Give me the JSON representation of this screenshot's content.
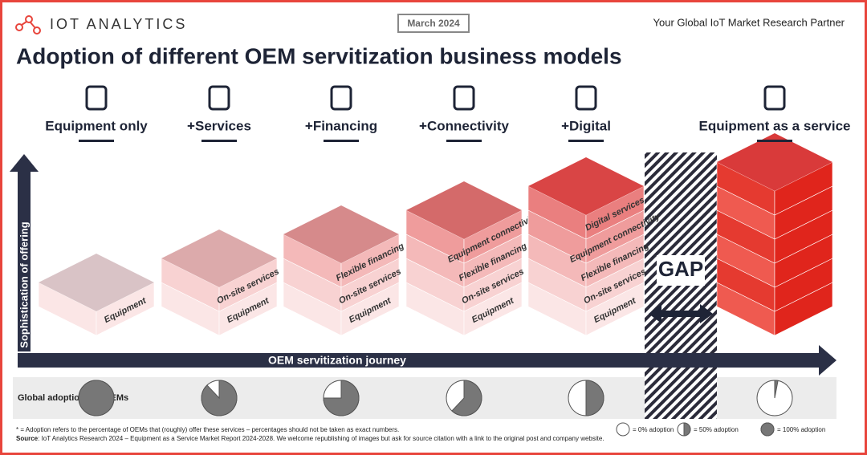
{
  "header": {
    "brand": "IOT ANALYTICS",
    "date": "March 2024",
    "tagline": "Your Global IoT Market Research Partner",
    "title": "Adoption of different OEM servitization business models"
  },
  "models": [
    {
      "label": "Equipment only",
      "layers": [
        "Equipment"
      ],
      "adoption": 100
    },
    {
      "label": "+Services",
      "layers": [
        "Equipment",
        "On-site services"
      ],
      "adoption": 88
    },
    {
      "label": "+Financing",
      "layers": [
        "Equipment",
        "On-site services",
        "Flexible financing"
      ],
      "adoption": 75
    },
    {
      "label": "+Connectivity",
      "layers": [
        "Equipment",
        "On-site services",
        "Flexible financing",
        "Equipment connectivity"
      ],
      "adoption": 62
    },
    {
      "label": "+Digital",
      "layers": [
        "Equipment",
        "On-site services",
        "Flexible financing",
        "Equipment connectivity",
        "Digital services"
      ],
      "adoption": 50
    },
    {
      "label": "Equipment as a service",
      "layers": [],
      "adoption": 3
    }
  ],
  "gap": "GAP",
  "axis": {
    "y": "Sophistication of offering",
    "x": "OEM servitization journey"
  },
  "adoption_label": "Global adoption* by OEMs",
  "legend": [
    {
      "label": "= 0% adoption",
      "value": 0
    },
    {
      "label": "= 50% adoption",
      "value": 50
    },
    {
      "label": "= 100% adoption",
      "value": 100
    }
  ],
  "footnote": "* = Adoption refers to the percentage of OEMs that (roughly) offer these services – percentages should not be taken as exact numbers.",
  "source_label": "Source",
  "source": ": IoT Analytics Research 2024 – Equipment as a Service Market Report 2024-2028. We welcome republishing of images but ask for source citation with a link to the original post and company website."
}
